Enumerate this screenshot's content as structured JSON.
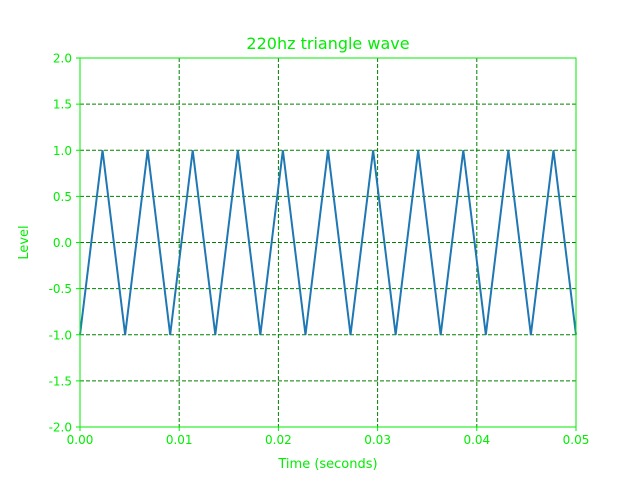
{
  "chart_data": {
    "type": "line",
    "title": "220hz triangle wave",
    "xlabel": "Time (seconds)",
    "ylabel": "Level",
    "xlim": [
      0.0,
      0.05
    ],
    "ylim": [
      -2.0,
      2.0
    ],
    "xticks": [
      "0.00",
      "0.01",
      "0.02",
      "0.03",
      "0.04",
      "0.05"
    ],
    "yticks": [
      "2.0",
      "1.5",
      "1.0",
      "0.5",
      "0.0",
      "-0.5",
      "-1.0",
      "-1.5",
      "-2.0"
    ],
    "grid": true,
    "grid_style": "dashed",
    "series": [
      {
        "frequency_hz": 220,
        "amplitude": 1.0,
        "x": [
          0.0,
          0.00227,
          0.00455,
          0.00682,
          0.00909,
          0.01136,
          0.01364,
          0.01591,
          0.01818,
          0.02045,
          0.02273,
          0.025,
          0.02727,
          0.02955,
          0.03182,
          0.03409,
          0.03636,
          0.03864,
          0.04091,
          0.04318,
          0.04545,
          0.04773,
          0.05
        ],
        "y": [
          -1.0,
          1.0,
          -1.0,
          1.0,
          -1.0,
          1.0,
          -1.0,
          1.0,
          -1.0,
          1.0,
          -1.0,
          1.0,
          -1.0,
          1.0,
          -1.0,
          1.0,
          -1.0,
          1.0,
          -1.0,
          1.0,
          -1.0,
          1.0,
          -1.0
        ]
      }
    ]
  },
  "colors": {
    "text": "#00ee00",
    "axes": "#00ee00",
    "grid": "#008000",
    "line": "#1f77b4",
    "background": "#ffffff"
  }
}
